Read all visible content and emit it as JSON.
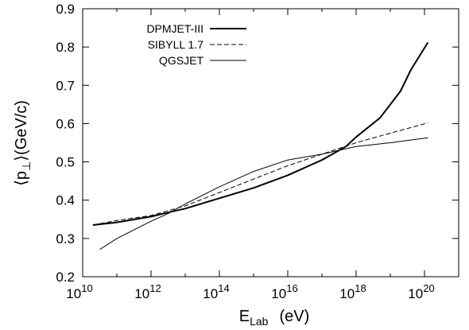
{
  "chart_data": {
    "type": "line",
    "title": "",
    "xlabel": {
      "main": "E",
      "subscript": "Lab",
      "unit": "(eV)"
    },
    "ylabel": {
      "main": "⟨p",
      "subscript": "⊥",
      "close": "⟩",
      "unit": "(GeV/c)"
    },
    "x_scale": "log",
    "xlim": [
      10000000000.0,
      1e+21
    ],
    "ylim": [
      0.2,
      0.9
    ],
    "x_ticks": [
      {
        "exp": 10,
        "base": "10",
        "sup": "10"
      },
      {
        "exp": 12,
        "base": "10",
        "sup": "12"
      },
      {
        "exp": 14,
        "base": "10",
        "sup": "14"
      },
      {
        "exp": 16,
        "base": "10",
        "sup": "16"
      },
      {
        "exp": 18,
        "base": "10",
        "sup": "18"
      },
      {
        "exp": 20,
        "base": "10",
        "sup": "20"
      }
    ],
    "y_ticks": [
      "0.2",
      "0.3",
      "0.4",
      "0.5",
      "0.6",
      "0.7",
      "0.8",
      "0.9"
    ],
    "grid": false,
    "legend_position": "top-left",
    "series": [
      {
        "name": "DPMJET-III",
        "style": "thick-solid",
        "color": "#000000",
        "x_log10": [
          10.3,
          11.0,
          12.0,
          12.6,
          13.0,
          14.0,
          15.0,
          16.0,
          17.0,
          17.7,
          18.0,
          18.7,
          19.0,
          19.3,
          19.6,
          20.1
        ],
        "y": [
          0.335,
          0.342,
          0.357,
          0.37,
          0.378,
          0.405,
          0.432,
          0.465,
          0.505,
          0.54,
          0.565,
          0.615,
          0.65,
          0.685,
          0.74,
          0.812
        ]
      },
      {
        "name": "SIBYLL 1.7",
        "style": "dashed",
        "color": "#000000",
        "x_log10": [
          10.3,
          11.0,
          12.0,
          13.0,
          14.0,
          15.0,
          16.0,
          17.0,
          18.0,
          19.0,
          20.1
        ],
        "y": [
          0.335,
          0.347,
          0.36,
          0.385,
          0.42,
          0.455,
          0.49,
          0.52,
          0.55,
          0.575,
          0.602
        ]
      },
      {
        "name": "QGSJET",
        "style": "thin-solid",
        "color": "#000000",
        "x_log10": [
          10.5,
          11.0,
          12.0,
          12.5,
          13.0,
          14.0,
          15.0,
          16.0,
          17.0,
          18.0,
          19.0,
          20.1
        ],
        "y": [
          0.271,
          0.3,
          0.345,
          0.365,
          0.39,
          0.435,
          0.475,
          0.505,
          0.52,
          0.54,
          0.55,
          0.563
        ]
      }
    ]
  }
}
